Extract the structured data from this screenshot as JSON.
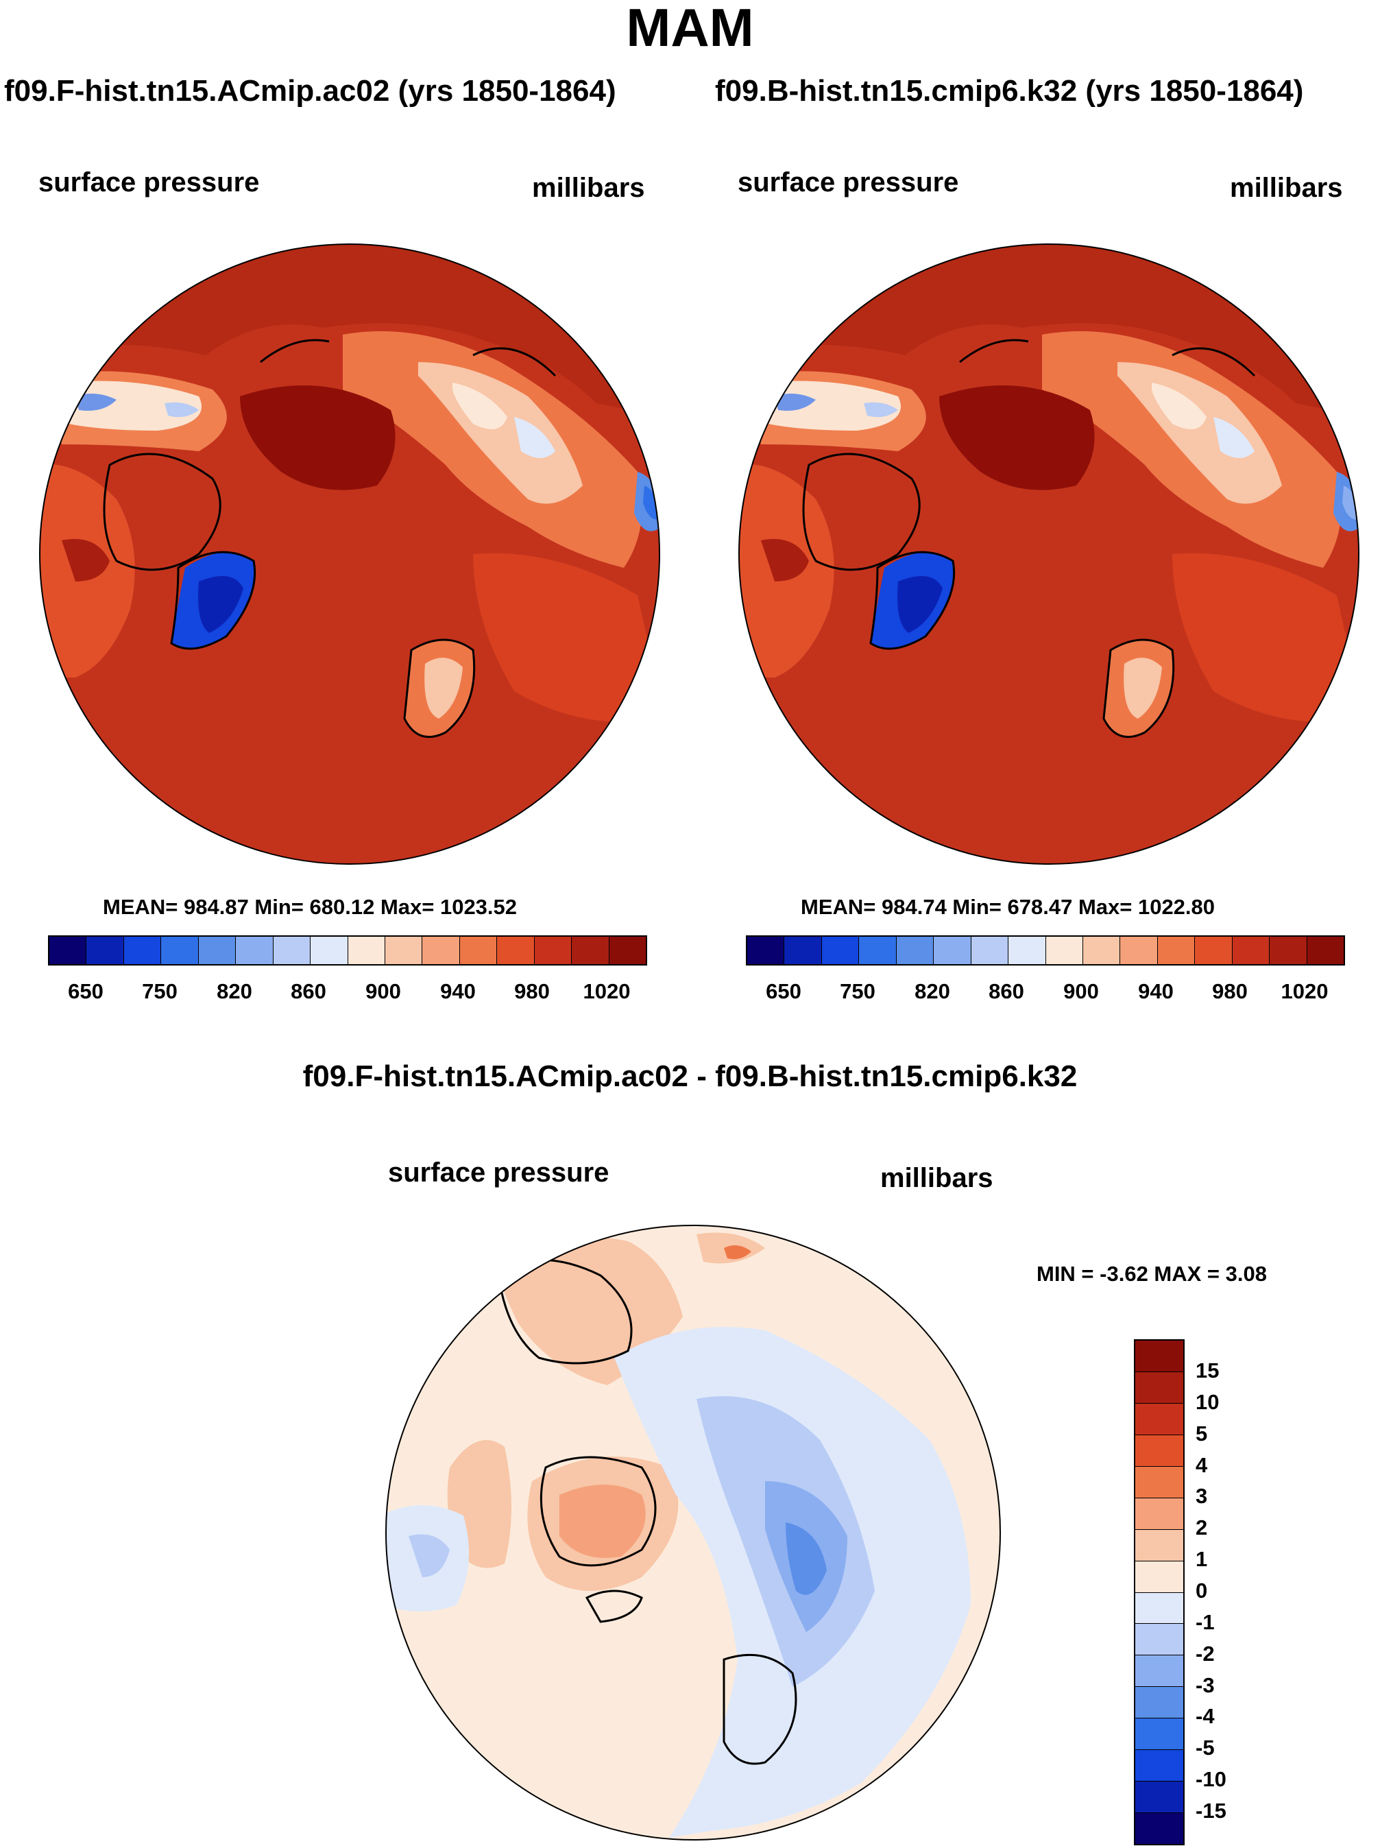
{
  "title": "MAM",
  "left_panel": {
    "title": "f09.F-hist.tn15.ACmip.ac02 (yrs 1850-1864)",
    "variable": "surface pressure",
    "units": "millibars",
    "stats": "MEAN= 984.87  Min= 680.12  Max= 1023.52"
  },
  "right_panel": {
    "title": "f09.B-hist.tn15.cmip6.k32 (yrs 1850-1864)",
    "variable": "surface pressure",
    "units": "millibars",
    "stats": "MEAN= 984.74  Min= 678.47  Max= 1022.80"
  },
  "diff_panel": {
    "title": "f09.F-hist.tn15.ACmip.ac02 - f09.B-hist.tn15.cmip6.k32",
    "variable": "surface pressure",
    "units": "millibars",
    "stats": "MIN =  -3.62 MAX =   3.08"
  },
  "colorbar_main": {
    "colors": [
      "#08006e",
      "#0a22b4",
      "#1446e0",
      "#2f6fe8",
      "#5b8fe8",
      "#8aaef0",
      "#b8ccf5",
      "#dfe9fa",
      "#fce8d8",
      "#f8c6a8",
      "#f5a27c",
      "#ee7748",
      "#e2502a",
      "#c8321c",
      "#a81e10",
      "#8a0e08"
    ],
    "tick_labels": [
      "650",
      "750",
      "820",
      "860",
      "900",
      "940",
      "980",
      "1020"
    ]
  },
  "colorbar_diff": {
    "colors": [
      "#8a0e08",
      "#a81e10",
      "#c8321c",
      "#e2502a",
      "#ee7748",
      "#f5a27c",
      "#f8c6a8",
      "#fce8d8",
      "#dfe9fa",
      "#b8ccf5",
      "#8aaef0",
      "#5b8fe8",
      "#2f6fe8",
      "#1446e0",
      "#0a22b4",
      "#08006e"
    ],
    "tick_labels": [
      "15",
      "10",
      "5",
      "4",
      "3",
      "2",
      "1",
      "0",
      "-1",
      "-2",
      "-3",
      "-4",
      "-5",
      "-10",
      "-15"
    ]
  },
  "colors": {
    "ocean_main": "#c3331c",
    "pole_high": "#8f0f08",
    "diff_base": "#fcebdc"
  }
}
